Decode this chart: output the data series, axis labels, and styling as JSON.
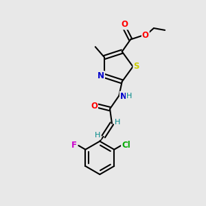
{
  "background_color": "#e8e8e8",
  "bond_color": "#000000",
  "atom_colors": {
    "O": "#ff0000",
    "N": "#0000cc",
    "S": "#cccc00",
    "F": "#cc00cc",
    "Cl": "#00aa00",
    "H": "#008888",
    "C": "#000000"
  },
  "figsize": [
    3.0,
    3.0
  ],
  "dpi": 100
}
